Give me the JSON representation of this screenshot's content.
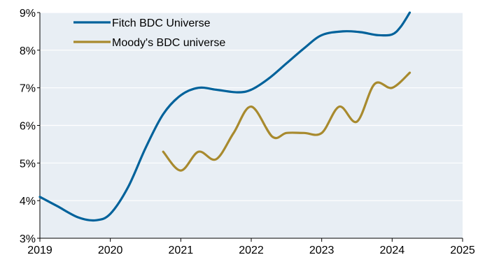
{
  "chart_data": {
    "type": "line",
    "title": "",
    "xlabel": "",
    "ylabel": "",
    "xlim": [
      2019,
      2025
    ],
    "ylim": [
      3,
      9
    ],
    "x_ticks": [
      2019,
      2020,
      2021,
      2022,
      2023,
      2024,
      2025
    ],
    "x_tick_labels": [
      "2019",
      "2020",
      "2021",
      "2022",
      "2023",
      "2024",
      "2025"
    ],
    "y_ticks": [
      3,
      4,
      5,
      6,
      7,
      8,
      9
    ],
    "y_tick_labels": [
      "3%",
      "4%",
      "5%",
      "6%",
      "7%",
      "8%",
      "9%"
    ],
    "grid": "horizontal",
    "background": "#e8eef4",
    "legend_position": "top-left",
    "series": [
      {
        "name": "Fitch BDC Universe",
        "color": "#00629b",
        "points": [
          [
            2019.0,
            4.1
          ],
          [
            2019.25,
            3.85
          ],
          [
            2019.55,
            3.55
          ],
          [
            2019.8,
            3.48
          ],
          [
            2020.0,
            3.65
          ],
          [
            2020.25,
            4.35
          ],
          [
            2020.5,
            5.4
          ],
          [
            2020.75,
            6.3
          ],
          [
            2021.0,
            6.8
          ],
          [
            2021.25,
            7.0
          ],
          [
            2021.5,
            6.95
          ],
          [
            2021.8,
            6.88
          ],
          [
            2022.0,
            6.95
          ],
          [
            2022.25,
            7.25
          ],
          [
            2022.5,
            7.65
          ],
          [
            2022.75,
            8.05
          ],
          [
            2023.0,
            8.4
          ],
          [
            2023.3,
            8.5
          ],
          [
            2023.55,
            8.48
          ],
          [
            2023.8,
            8.4
          ],
          [
            2024.0,
            8.42
          ],
          [
            2024.12,
            8.62
          ],
          [
            2024.25,
            9.0
          ]
        ]
      },
      {
        "name": "Moody's BDC universe",
        "color": "#a88a2e",
        "points": [
          [
            2020.75,
            5.3
          ],
          [
            2021.0,
            4.8
          ],
          [
            2021.25,
            5.3
          ],
          [
            2021.5,
            5.1
          ],
          [
            2021.75,
            5.8
          ],
          [
            2022.0,
            6.5
          ],
          [
            2022.3,
            5.7
          ],
          [
            2022.5,
            5.8
          ],
          [
            2022.75,
            5.8
          ],
          [
            2023.0,
            5.8
          ],
          [
            2023.25,
            6.5
          ],
          [
            2023.5,
            6.1
          ],
          [
            2023.75,
            7.1
          ],
          [
            2024.0,
            7.0
          ],
          [
            2024.25,
            7.4
          ]
        ]
      }
    ]
  }
}
